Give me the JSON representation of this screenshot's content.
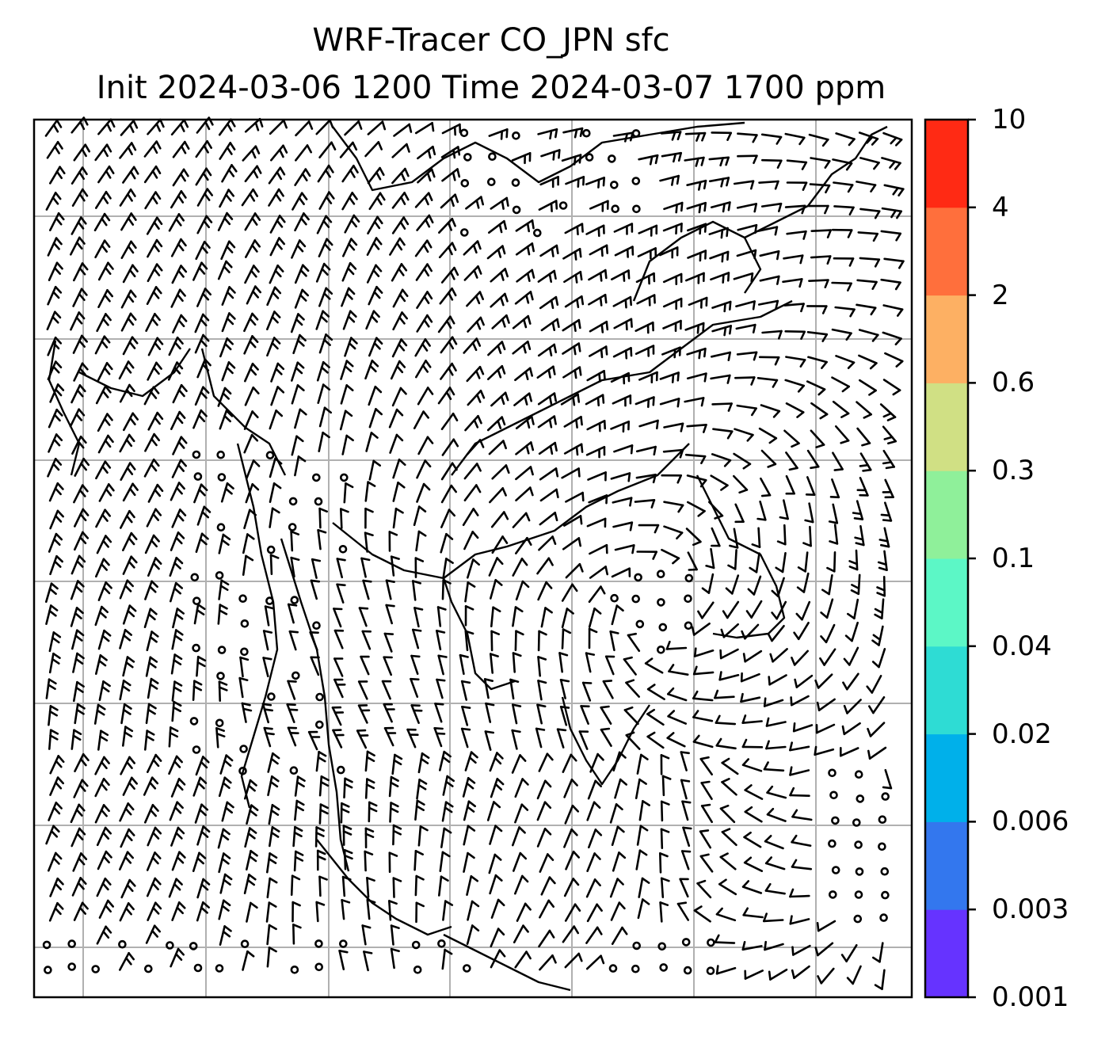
{
  "title_line1": "WRF-Tracer CO_JPN sfc",
  "title_line2": "Init 2024-03-06 1200 Time 2024-03-07 1700 ppm",
  "colorbar": {
    "ticks": [
      "0.001",
      "0.003",
      "0.006",
      "0.02",
      "0.04",
      "0.1",
      "0.3",
      "0.6",
      "2",
      "4",
      "10"
    ],
    "colors": [
      "#6633ff",
      "#3377ee",
      "#00b0ea",
      "#2edcd4",
      "#5cf7c6",
      "#8ff09a",
      "#d0e084",
      "#fdb063",
      "#ff6f3c",
      "#ff2a14"
    ]
  },
  "map": {
    "gridline_color": "#b0b0b0",
    "coastline_color": "#000000",
    "symbols": [
      "wind-barbs",
      "calm-circles",
      "coastlines",
      "lat-lon-grid"
    ]
  }
}
